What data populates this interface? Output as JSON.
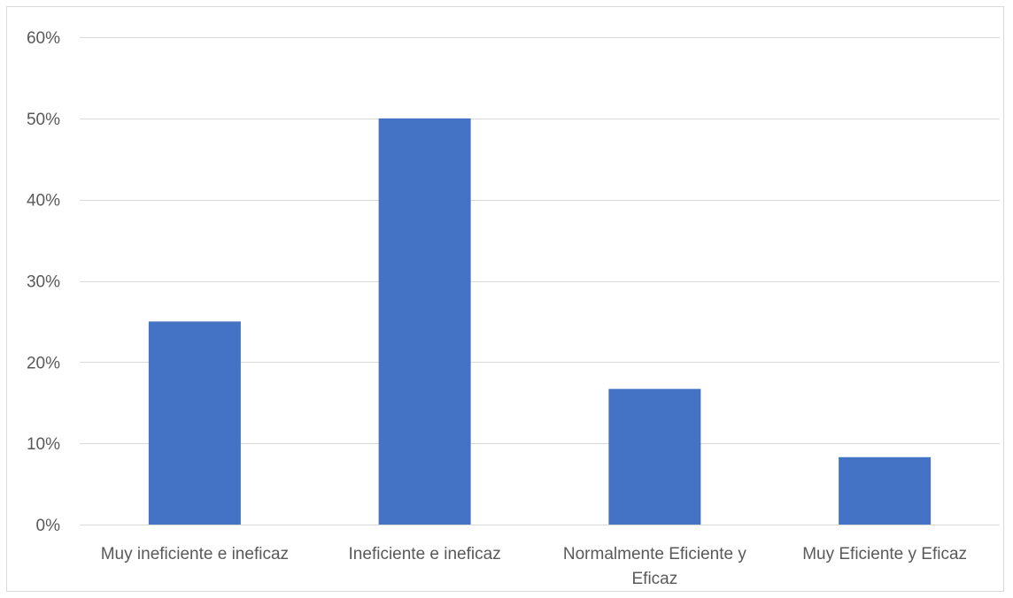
{
  "chart_data": {
    "type": "bar",
    "categories": [
      "Muy ineficiente e ineficaz",
      "Ineficiente e ineficaz",
      "Normalmente Eficiente y Eficaz",
      "Muy Eficiente y Eficaz"
    ],
    "category_lines": [
      [
        "Muy ineficiente e ineficaz"
      ],
      [
        "Ineficiente e ineficaz"
      ],
      [
        "Normalmente Eficiente y",
        "Eficaz"
      ],
      [
        "Muy Eficiente y Eficaz"
      ]
    ],
    "values": [
      0.25,
      0.5,
      0.167,
      0.083
    ],
    "title": "",
    "xlabel": "",
    "ylabel": "",
    "ylim": [
      0,
      0.6
    ],
    "yticks": [
      0,
      0.1,
      0.2,
      0.3,
      0.4,
      0.5,
      0.6
    ],
    "ytick_labels": [
      "0%",
      "10%",
      "20%",
      "30%",
      "40%",
      "50%",
      "60%"
    ],
    "grid": true,
    "legend": "none",
    "bar_color": "#4472c4",
    "grid_color": "#d9d9d9",
    "text_color": "#595959"
  }
}
